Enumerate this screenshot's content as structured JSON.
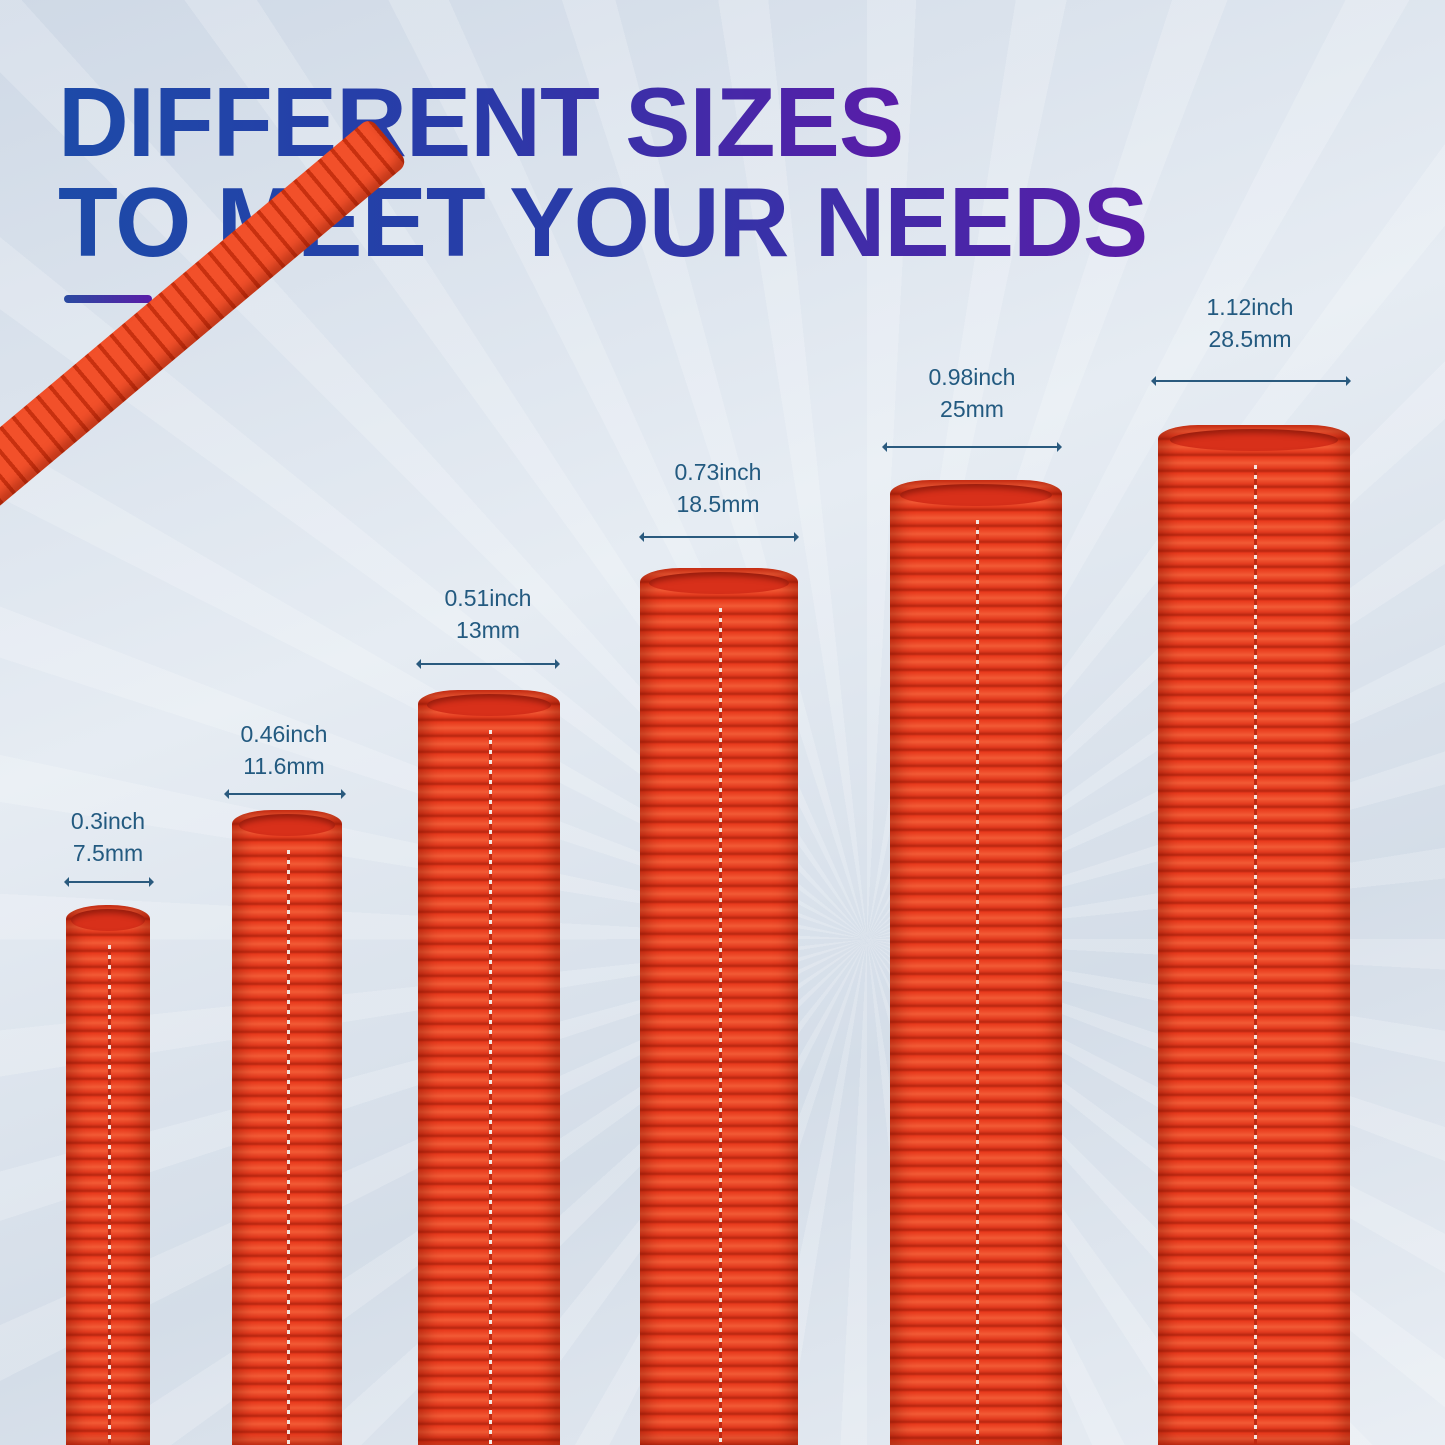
{
  "headline": {
    "line1": "DIFFERENT SIZES",
    "line2": "TO MEET YOUR NEEDS"
  },
  "colors": {
    "tube": "#e8391c",
    "headline_start": "#1d4aa8",
    "headline_end": "#5a1ca8",
    "label": "#235a80"
  },
  "sizes": [
    {
      "inch": "0.3inch",
      "mm": "7.5mm"
    },
    {
      "inch": "0.46inch",
      "mm": "11.6mm"
    },
    {
      "inch": "0.51inch",
      "mm": "13mm"
    },
    {
      "inch": "0.73inch",
      "mm": "18.5mm"
    },
    {
      "inch": "0.98inch",
      "mm": "25mm"
    },
    {
      "inch": "1.12inch",
      "mm": "28.5mm"
    }
  ]
}
